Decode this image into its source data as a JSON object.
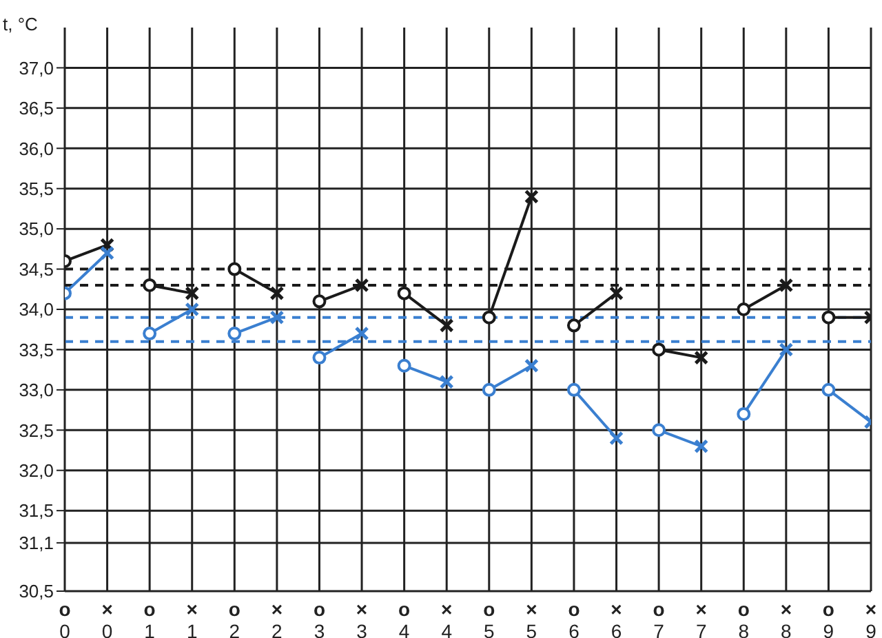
{
  "chart_data": {
    "type": "line",
    "ylabel": "t, °C",
    "categories": [
      "o\n0",
      "×\n0",
      "o\n1",
      "×\n1",
      "o\n2",
      "×\n2",
      "o\n3",
      "×\n3",
      "o\n4",
      "×\n4",
      "o\n5",
      "×\n5",
      "o\n6",
      "×\n6",
      "o\n7",
      "×\n7",
      "o\n8",
      "×\n8",
      "o\n9",
      "×\n9"
    ],
    "ylim": [
      30.5,
      37.5
    ],
    "yticks": [
      {
        "value": 30.5,
        "label": "30,5"
      },
      {
        "value": 31.1,
        "label": "31,1"
      },
      {
        "value": 31.5,
        "label": "31,5"
      },
      {
        "value": 32.0,
        "label": "32,0"
      },
      {
        "value": 32.5,
        "label": "32,5"
      },
      {
        "value": 33.0,
        "label": "33,0"
      },
      {
        "value": 33.5,
        "label": "33,5"
      },
      {
        "value": 34.0,
        "label": "34,0"
      },
      {
        "value": 34.5,
        "label": "34,5"
      },
      {
        "value": 35.0,
        "label": "35,0"
      },
      {
        "value": 35.5,
        "label": "35,5"
      },
      {
        "value": 36.0,
        "label": "36,0"
      },
      {
        "value": 36.5,
        "label": "36,5"
      },
      {
        "value": 37.0,
        "label": "37,0"
      }
    ],
    "grid": true,
    "marker": [
      "circle",
      "cross"
    ],
    "line_style": "solid",
    "ref_lines": [
      {
        "axis": "y",
        "value": 34.5,
        "color": "#1a1a1a",
        "line_style": "dashed"
      },
      {
        "axis": "y",
        "value": 34.3,
        "color": "#1a1a1a",
        "line_style": "dashed"
      },
      {
        "axis": "y",
        "value": 33.9,
        "color": "#3a7fd0",
        "line_style": "dashed"
      },
      {
        "axis": "y",
        "value": 33.6,
        "color": "#3a7fd0",
        "line_style": "dashed"
      }
    ],
    "series": [
      {
        "color": "#1a1a1a",
        "values": [
          34.6,
          34.8,
          null,
          null,
          null,
          null,
          null,
          null,
          null,
          null,
          null,
          null,
          null,
          null,
          null,
          null,
          null,
          null,
          null,
          null
        ]
      },
      {
        "color": "#1a1a1a",
        "values": [
          null,
          null,
          34.3,
          34.2,
          null,
          null,
          null,
          null,
          null,
          null,
          null,
          null,
          null,
          null,
          null,
          null,
          null,
          null,
          null,
          null
        ]
      },
      {
        "color": "#1a1a1a",
        "values": [
          null,
          null,
          null,
          null,
          34.5,
          34.2,
          null,
          null,
          null,
          null,
          null,
          null,
          null,
          null,
          null,
          null,
          null,
          null,
          null,
          null
        ]
      },
      {
        "color": "#1a1a1a",
        "values": [
          null,
          null,
          null,
          null,
          null,
          null,
          34.1,
          34.3,
          null,
          null,
          null,
          null,
          null,
          null,
          null,
          null,
          null,
          null,
          null,
          null
        ]
      },
      {
        "color": "#1a1a1a",
        "values": [
          null,
          null,
          null,
          null,
          null,
          null,
          null,
          null,
          34.2,
          33.8,
          null,
          null,
          null,
          null,
          null,
          null,
          null,
          null,
          null,
          null
        ]
      },
      {
        "color": "#1a1a1a",
        "values": [
          null,
          null,
          null,
          null,
          null,
          null,
          null,
          null,
          null,
          null,
          33.9,
          35.4,
          null,
          null,
          null,
          null,
          null,
          null,
          null,
          null
        ]
      },
      {
        "color": "#1a1a1a",
        "values": [
          null,
          null,
          null,
          null,
          null,
          null,
          null,
          null,
          null,
          null,
          null,
          null,
          33.8,
          34.2,
          null,
          null,
          null,
          null,
          null,
          null
        ]
      },
      {
        "color": "#1a1a1a",
        "values": [
          null,
          null,
          null,
          null,
          null,
          null,
          null,
          null,
          null,
          null,
          null,
          null,
          null,
          null,
          33.5,
          33.4,
          null,
          null,
          null,
          null
        ]
      },
      {
        "color": "#1a1a1a",
        "values": [
          null,
          null,
          null,
          null,
          null,
          null,
          null,
          null,
          null,
          null,
          null,
          null,
          null,
          null,
          null,
          null,
          34.0,
          34.3,
          null,
          null
        ]
      },
      {
        "color": "#1a1a1a",
        "values": [
          null,
          null,
          null,
          null,
          null,
          null,
          null,
          null,
          null,
          null,
          null,
          null,
          null,
          null,
          null,
          null,
          null,
          null,
          33.9,
          33.9
        ]
      },
      {
        "color": "#3a7fd0",
        "values": [
          34.2,
          34.7,
          null,
          null,
          null,
          null,
          null,
          null,
          null,
          null,
          null,
          null,
          null,
          null,
          null,
          null,
          null,
          null,
          null,
          null
        ]
      },
      {
        "color": "#3a7fd0",
        "values": [
          null,
          null,
          33.7,
          34.0,
          null,
          null,
          null,
          null,
          null,
          null,
          null,
          null,
          null,
          null,
          null,
          null,
          null,
          null,
          null,
          null
        ]
      },
      {
        "color": "#3a7fd0",
        "values": [
          null,
          null,
          null,
          null,
          33.7,
          33.9,
          null,
          null,
          null,
          null,
          null,
          null,
          null,
          null,
          null,
          null,
          null,
          null,
          null,
          null
        ]
      },
      {
        "color": "#3a7fd0",
        "values": [
          null,
          null,
          null,
          null,
          null,
          null,
          33.4,
          33.7,
          null,
          null,
          null,
          null,
          null,
          null,
          null,
          null,
          null,
          null,
          null,
          null
        ]
      },
      {
        "color": "#3a7fd0",
        "values": [
          null,
          null,
          null,
          null,
          null,
          null,
          null,
          null,
          33.3,
          33.1,
          null,
          null,
          null,
          null,
          null,
          null,
          null,
          null,
          null,
          null
        ]
      },
      {
        "color": "#3a7fd0",
        "values": [
          null,
          null,
          null,
          null,
          null,
          null,
          null,
          null,
          null,
          null,
          33.0,
          33.3,
          null,
          null,
          null,
          null,
          null,
          null,
          null,
          null
        ]
      },
      {
        "color": "#3a7fd0",
        "values": [
          null,
          null,
          null,
          null,
          null,
          null,
          null,
          null,
          null,
          null,
          null,
          null,
          33.0,
          32.4,
          null,
          null,
          null,
          null,
          null,
          null
        ]
      },
      {
        "color": "#3a7fd0",
        "values": [
          null,
          null,
          null,
          null,
          null,
          null,
          null,
          null,
          null,
          null,
          null,
          null,
          null,
          null,
          32.5,
          32.3,
          null,
          null,
          null,
          null
        ]
      },
      {
        "color": "#3a7fd0",
        "values": [
          null,
          null,
          null,
          null,
          null,
          null,
          null,
          null,
          null,
          null,
          null,
          null,
          null,
          null,
          null,
          null,
          32.7,
          33.5,
          null,
          null
        ]
      },
      {
        "color": "#3a7fd0",
        "values": [
          null,
          null,
          null,
          null,
          null,
          null,
          null,
          null,
          null,
          null,
          null,
          null,
          null,
          null,
          null,
          null,
          null,
          null,
          33.0,
          32.6
        ]
      }
    ]
  }
}
